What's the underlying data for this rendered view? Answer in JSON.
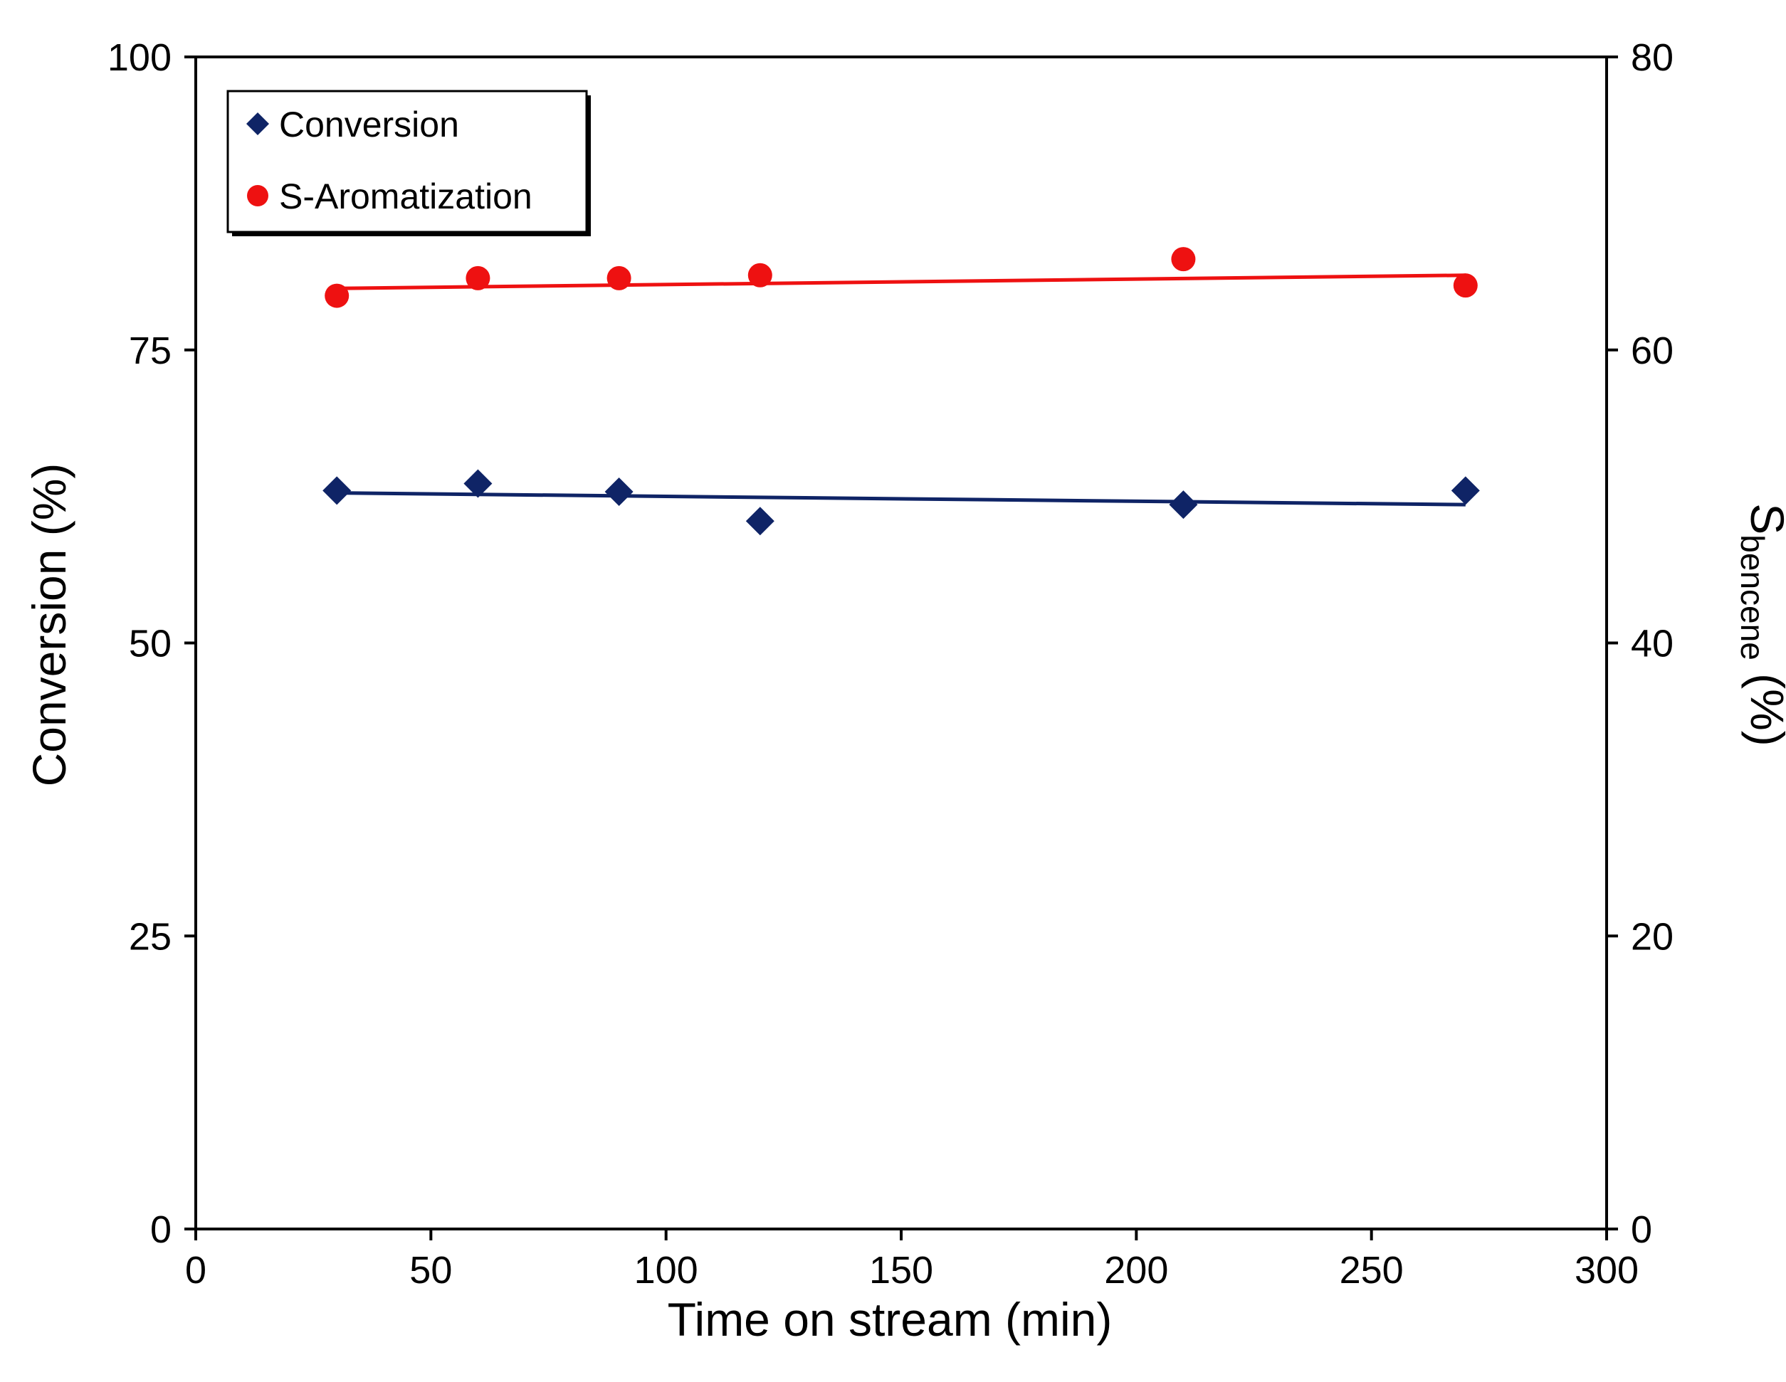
{
  "chart_data": {
    "type": "scatter",
    "title": "",
    "xlabel": "Time on stream (min)",
    "ylabel_left": "Conversion (%)",
    "ylabel_right": {
      "main": "S",
      "subscript": "bencene",
      "suffix": " (%)"
    },
    "xlim": [
      0,
      300
    ],
    "ylim_left": [
      0,
      100
    ],
    "ylim_right": [
      0,
      80
    ],
    "xticks": [
      "0",
      "50",
      "100",
      "150",
      "200",
      "250",
      "300"
    ],
    "yticks_left": [
      "0",
      "25",
      "50",
      "75",
      "100"
    ],
    "yticks_right": [
      "0",
      "20",
      "40",
      "60",
      "80"
    ],
    "grid": false,
    "legend_position": "top-left",
    "series": [
      {
        "name": "Conversion",
        "axis": "left",
        "marker": "diamond",
        "color": "#0f2466",
        "points": [
          {
            "x": 30,
            "y": 63.0
          },
          {
            "x": 60,
            "y": 63.6
          },
          {
            "x": 90,
            "y": 62.9
          },
          {
            "x": 120,
            "y": 60.4
          },
          {
            "x": 210,
            "y": 61.8
          },
          {
            "x": 270,
            "y": 63.0
          }
        ],
        "trendline": {
          "x": [
            30,
            270
          ],
          "y": [
            62.8,
            61.8
          ]
        }
      },
      {
        "name": "S-Aromatization",
        "axis": "right",
        "marker": "circle",
        "color": "#ee1111",
        "points": [
          {
            "x": 30,
            "y": 63.7
          },
          {
            "x": 60,
            "y": 64.9
          },
          {
            "x": 90,
            "y": 64.9
          },
          {
            "x": 120,
            "y": 65.1
          },
          {
            "x": 210,
            "y": 66.2
          },
          {
            "x": 270,
            "y": 64.4
          }
        ],
        "trendline": {
          "x": [
            30,
            270
          ],
          "y": [
            64.2,
            65.1
          ]
        }
      }
    ]
  }
}
